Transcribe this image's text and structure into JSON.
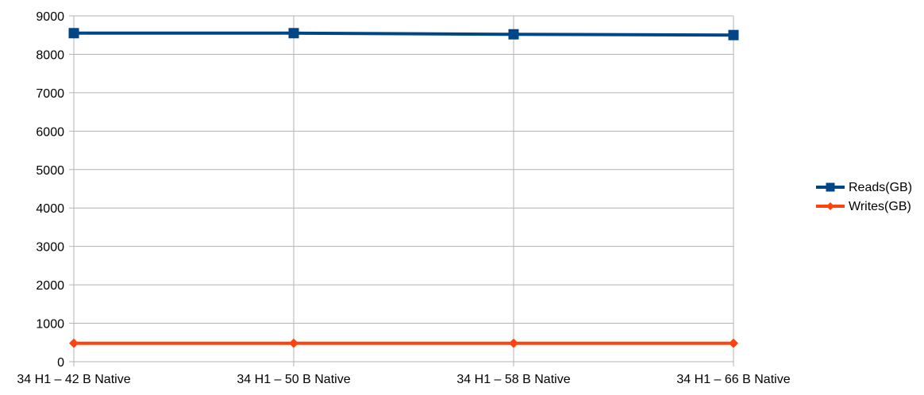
{
  "chart_data": {
    "type": "line",
    "title": "",
    "xlabel": "",
    "ylabel": "",
    "categories": [
      "34 H1 – 42 B Native",
      "34 H1 – 50 B Native",
      "34 H1 – 58 B Native",
      "34 H1 – 66 B Native"
    ],
    "ylim": [
      0,
      9000
    ],
    "yticks": [
      0,
      1000,
      2000,
      3000,
      4000,
      5000,
      6000,
      7000,
      8000,
      9000
    ],
    "grid": true,
    "legend_position": "right",
    "series": [
      {
        "name": "Reads(GB)",
        "values": [
          8550,
          8550,
          8520,
          8500
        ],
        "color": "#004586",
        "marker": "square"
      },
      {
        "name": "Writes(GB)",
        "values": [
          480,
          480,
          480,
          480
        ],
        "color": "#ff420e",
        "marker": "diamond"
      }
    ]
  }
}
